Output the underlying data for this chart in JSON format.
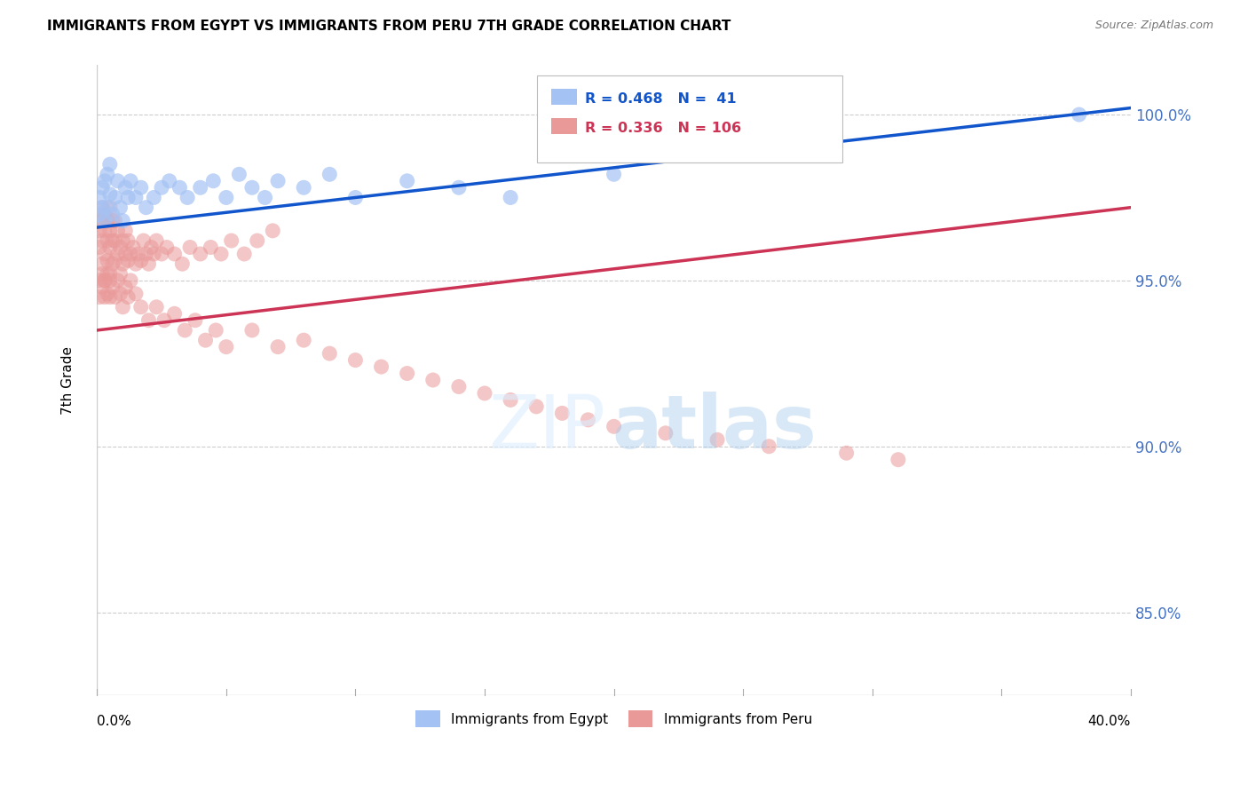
{
  "title": "IMMIGRANTS FROM EGYPT VS IMMIGRANTS FROM PERU 7TH GRADE CORRELATION CHART",
  "source": "Source: ZipAtlas.com",
  "ylabel": "7th Grade",
  "yaxis_labels": [
    "100.0%",
    "95.0%",
    "90.0%",
    "85.0%"
  ],
  "yaxis_values": [
    1.0,
    0.95,
    0.9,
    0.85
  ],
  "xaxis_range": [
    0.0,
    0.4
  ],
  "yaxis_range": [
    0.825,
    1.015
  ],
  "legend_egypt": "Immigrants from Egypt",
  "legend_peru": "Immigrants from Peru",
  "R_egypt": 0.468,
  "N_egypt": 41,
  "R_peru": 0.336,
  "N_peru": 106,
  "egypt_color": "#a4c2f4",
  "peru_color": "#ea9999",
  "egypt_line_color": "#1155cc",
  "peru_line_color": "#cc3355",
  "background_color": "#ffffff",
  "egypt_x": [
    0.001,
    0.001,
    0.002,
    0.002,
    0.003,
    0.003,
    0.004,
    0.004,
    0.005,
    0.005,
    0.006,
    0.007,
    0.008,
    0.009,
    0.01,
    0.011,
    0.012,
    0.013,
    0.015,
    0.017,
    0.019,
    0.022,
    0.025,
    0.028,
    0.032,
    0.035,
    0.04,
    0.045,
    0.05,
    0.055,
    0.06,
    0.065,
    0.07,
    0.08,
    0.09,
    0.1,
    0.12,
    0.14,
    0.16,
    0.2,
    0.38
  ],
  "egypt_y": [
    0.97,
    0.975,
    0.972,
    0.978,
    0.968,
    0.98,
    0.972,
    0.982,
    0.976,
    0.985,
    0.97,
    0.975,
    0.98,
    0.972,
    0.968,
    0.978,
    0.975,
    0.98,
    0.975,
    0.978,
    0.972,
    0.975,
    0.978,
    0.98,
    0.978,
    0.975,
    0.978,
    0.98,
    0.975,
    0.982,
    0.978,
    0.975,
    0.98,
    0.978,
    0.982,
    0.975,
    0.98,
    0.978,
    0.975,
    0.982,
    1.0
  ],
  "peru_x": [
    0.001,
    0.001,
    0.001,
    0.002,
    0.002,
    0.002,
    0.002,
    0.003,
    0.003,
    0.003,
    0.003,
    0.004,
    0.004,
    0.004,
    0.005,
    0.005,
    0.005,
    0.005,
    0.006,
    0.006,
    0.006,
    0.007,
    0.007,
    0.007,
    0.008,
    0.008,
    0.009,
    0.009,
    0.01,
    0.01,
    0.011,
    0.011,
    0.012,
    0.012,
    0.013,
    0.014,
    0.015,
    0.016,
    0.017,
    0.018,
    0.019,
    0.02,
    0.021,
    0.022,
    0.023,
    0.025,
    0.027,
    0.03,
    0.033,
    0.036,
    0.04,
    0.044,
    0.048,
    0.052,
    0.057,
    0.062,
    0.068,
    0.001,
    0.001,
    0.002,
    0.002,
    0.003,
    0.003,
    0.004,
    0.004,
    0.005,
    0.005,
    0.006,
    0.007,
    0.008,
    0.009,
    0.01,
    0.011,
    0.012,
    0.013,
    0.015,
    0.017,
    0.02,
    0.023,
    0.026,
    0.03,
    0.034,
    0.038,
    0.042,
    0.046,
    0.05,
    0.06,
    0.07,
    0.08,
    0.09,
    0.1,
    0.11,
    0.12,
    0.13,
    0.14,
    0.15,
    0.16,
    0.17,
    0.18,
    0.19,
    0.2,
    0.22,
    0.24,
    0.26,
    0.29,
    0.31
  ],
  "peru_y": [
    0.96,
    0.965,
    0.968,
    0.955,
    0.962,
    0.968,
    0.972,
    0.95,
    0.958,
    0.965,
    0.97,
    0.956,
    0.962,
    0.968,
    0.952,
    0.96,
    0.965,
    0.972,
    0.955,
    0.962,
    0.968,
    0.956,
    0.962,
    0.968,
    0.958,
    0.965,
    0.952,
    0.96,
    0.955,
    0.962,
    0.958,
    0.965,
    0.956,
    0.962,
    0.958,
    0.96,
    0.955,
    0.958,
    0.956,
    0.962,
    0.958,
    0.955,
    0.96,
    0.958,
    0.962,
    0.958,
    0.96,
    0.958,
    0.955,
    0.96,
    0.958,
    0.96,
    0.958,
    0.962,
    0.958,
    0.962,
    0.965,
    0.945,
    0.95,
    0.948,
    0.952,
    0.945,
    0.95,
    0.946,
    0.952,
    0.945,
    0.95,
    0.948,
    0.945,
    0.95,
    0.946,
    0.942,
    0.948,
    0.945,
    0.95,
    0.946,
    0.942,
    0.938,
    0.942,
    0.938,
    0.94,
    0.935,
    0.938,
    0.932,
    0.935,
    0.93,
    0.935,
    0.93,
    0.932,
    0.928,
    0.926,
    0.924,
    0.922,
    0.92,
    0.918,
    0.916,
    0.914,
    0.912,
    0.91,
    0.908,
    0.906,
    0.904,
    0.902,
    0.9,
    0.898,
    0.896
  ]
}
